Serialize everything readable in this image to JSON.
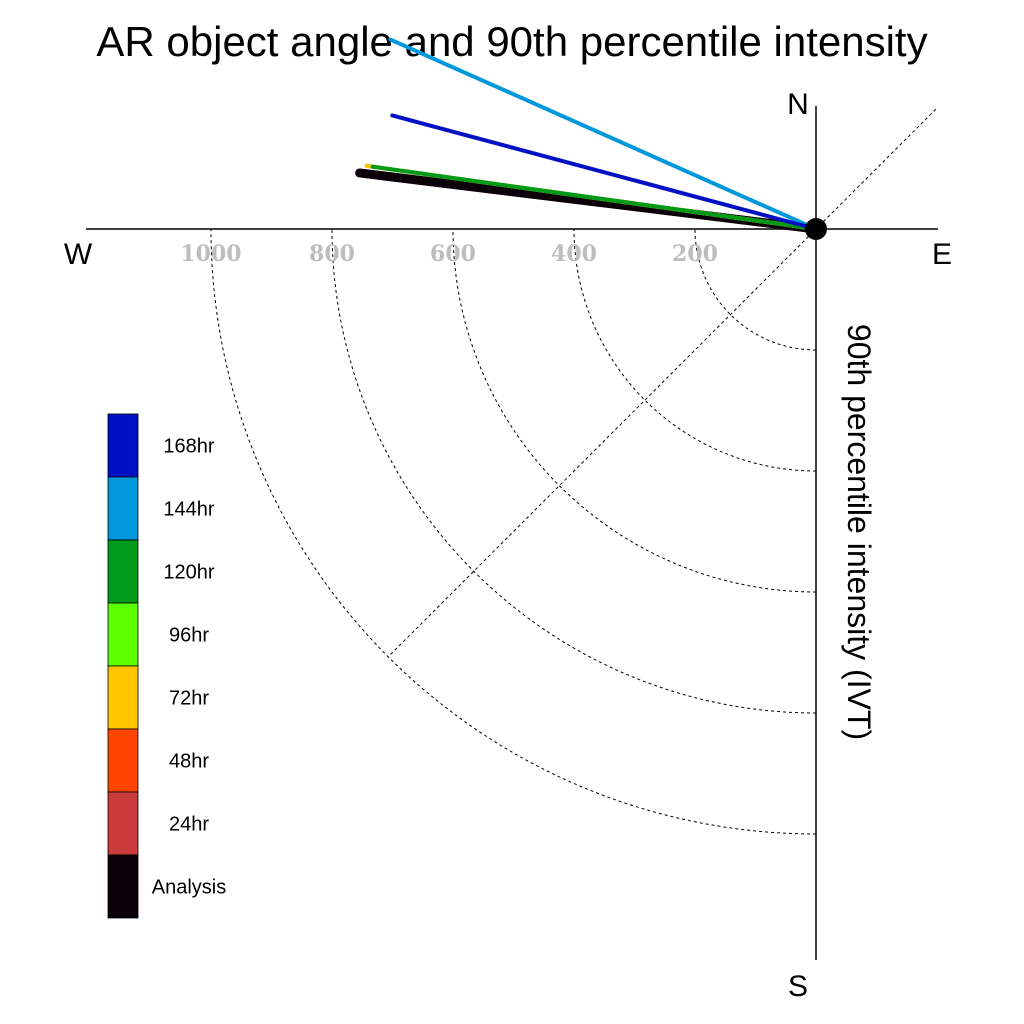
{
  "chart_data": {
    "type": "polar-vector",
    "title": "AR object angle and 90th percentile intensity",
    "radial_axis_label": "90th percentile intensity (IVT)",
    "compass": {
      "north": "N",
      "south": "S",
      "east": "E",
      "west": "W"
    },
    "rings": [
      200,
      400,
      600,
      800,
      1000
    ],
    "ring_labels": [
      "200",
      "400",
      "600",
      "800",
      "1000"
    ],
    "rmax": 1200,
    "grid": true,
    "legend_position": "left",
    "series": [
      {
        "name": "168hr",
        "color": "#0011c4",
        "angle_deg": 195,
        "magnitude": 725
      },
      {
        "name": "144hr",
        "color": "#0098dc",
        "angle_deg": 204,
        "magnitude": 770
      },
      {
        "name": "120hr",
        "color": "#009a1a",
        "angle_deg": 188,
        "magnitude": 740
      },
      {
        "name": "96hr",
        "color": "#5cff00",
        "angle_deg": 188,
        "magnitude": 740
      },
      {
        "name": "72hr",
        "color": "#ffc600",
        "angle_deg": 188,
        "magnitude": 750
      },
      {
        "name": "48hr",
        "color": "#ff4400",
        "angle_deg": 188,
        "magnitude": 735
      },
      {
        "name": "24hr",
        "color": "#cc3b3b",
        "angle_deg": 188,
        "magnitude": 745
      },
      {
        "name": "Analysis",
        "color": "#0c0008",
        "angle_deg": 187,
        "magnitude": 760
      }
    ]
  }
}
